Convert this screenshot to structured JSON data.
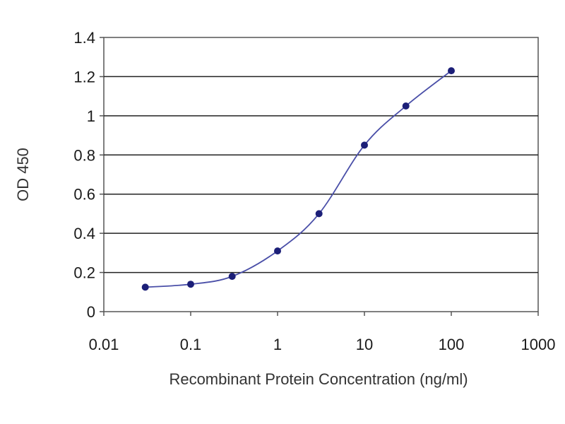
{
  "chart_data": {
    "type": "line",
    "xlabel": "Recombinant Protein Concentration (ng/ml)",
    "ylabel": "OD 450",
    "x_scale": "log",
    "xlim": [
      0.01,
      1000
    ],
    "ylim": [
      0,
      1.4
    ],
    "x_ticks": [
      "0.01",
      "0.1",
      "1",
      "10",
      "100",
      "1000"
    ],
    "y_ticks": [
      "0",
      "0.2",
      "0.4",
      "0.6",
      "0.8",
      "1",
      "1.2",
      "1.4"
    ],
    "grid": "horizontal",
    "legend": "none",
    "series": [
      {
        "x": [
          0.03,
          0.1,
          0.3,
          1,
          3,
          10,
          30,
          100
        ],
        "y": [
          0.125,
          0.14,
          0.18,
          0.31,
          0.5,
          0.85,
          1.05,
          1.23
        ]
      }
    ],
    "colors": {
      "line": "#4a4fa8",
      "marker": "#1c1f78",
      "grid": "#222222",
      "frame": "#555555"
    }
  }
}
